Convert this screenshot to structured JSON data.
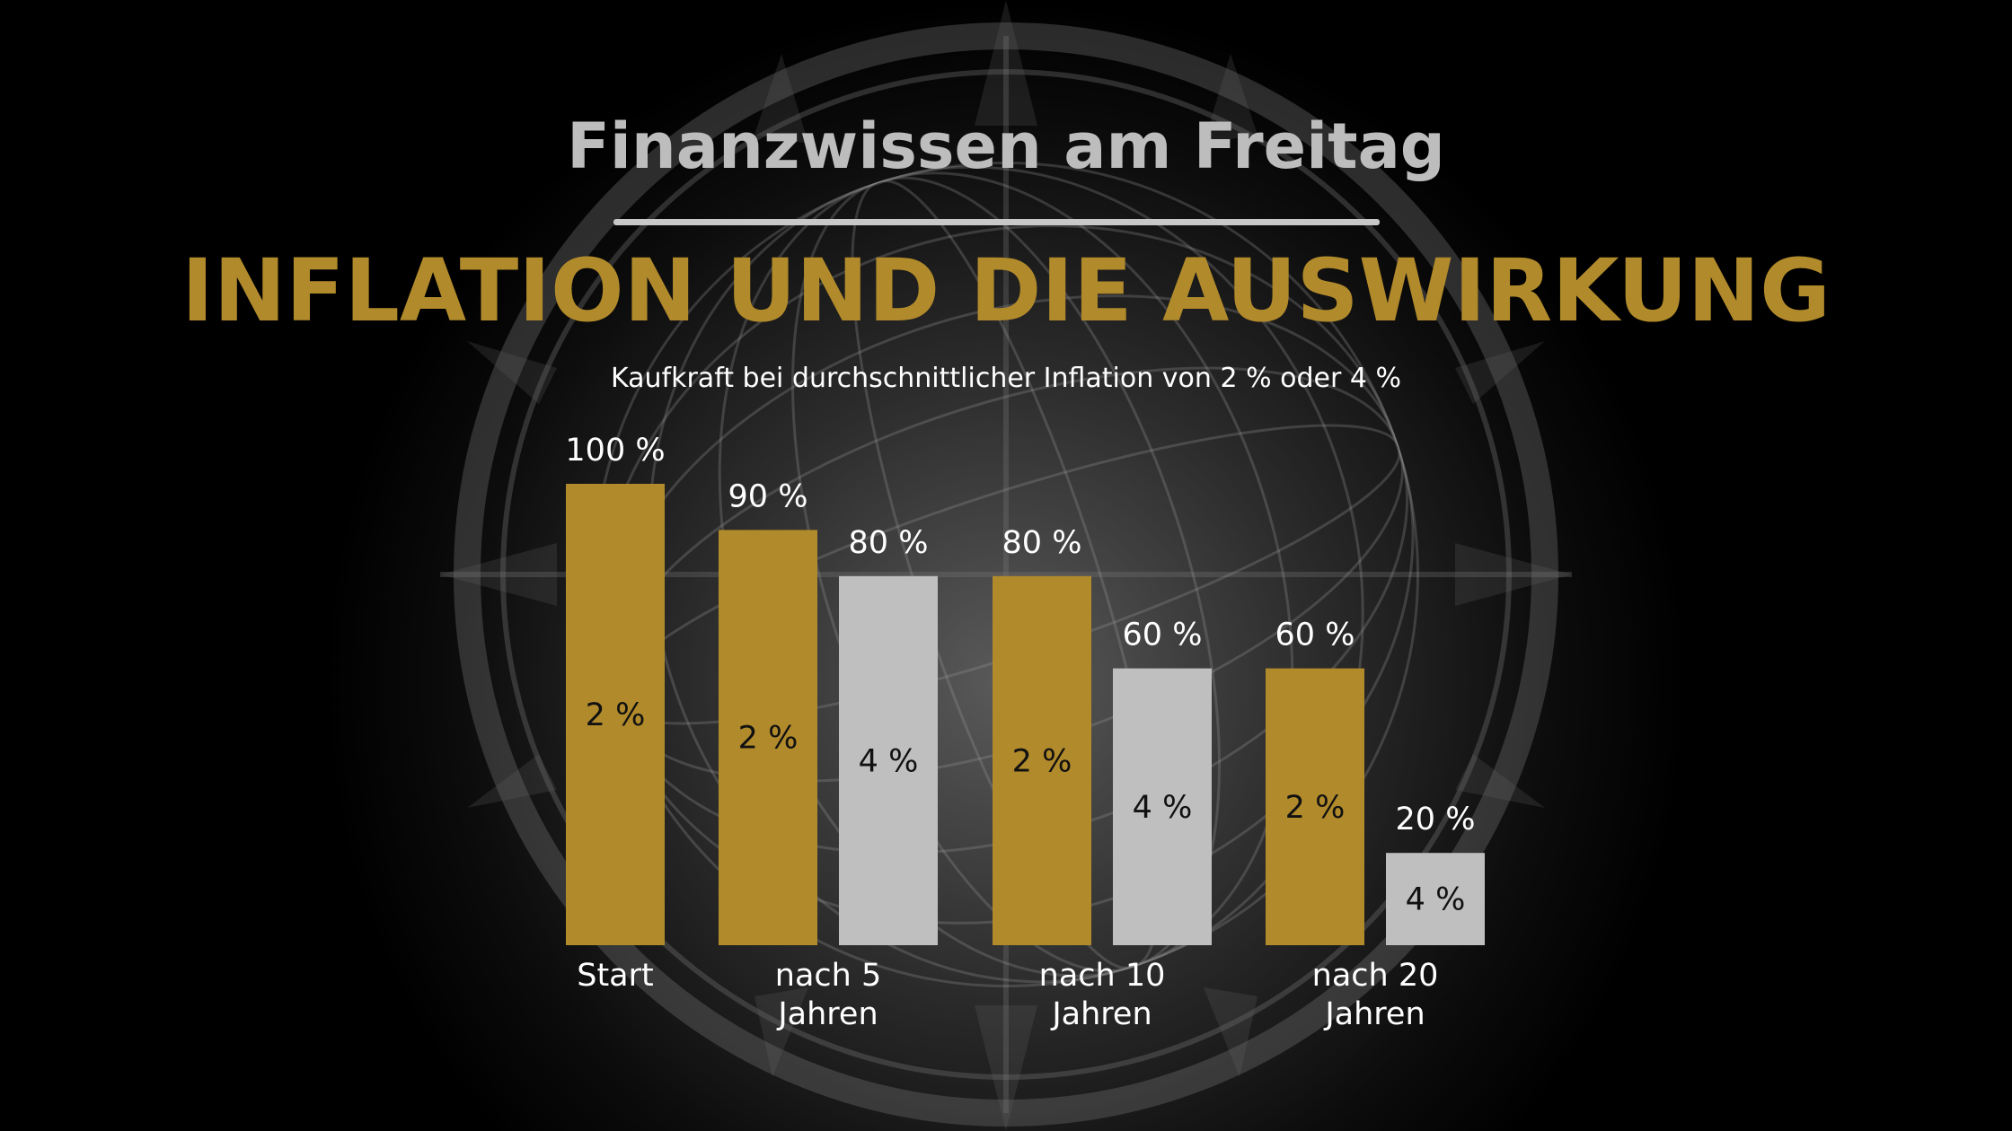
{
  "header": {
    "brand": "Finanzwissen am Freitag",
    "title": "INFLATION UND DIE AUSWIRKUNG",
    "subtitle": "Kaufkraft bei durchschnittlicher Inflation von 2 % oder 4 %"
  },
  "colors": {
    "gold": "#b18a2b",
    "silver": "#bfbfbf",
    "text_white": "#ffffff",
    "text_dark": "#111111"
  },
  "chart_data": {
    "type": "bar",
    "ylim": [
      0,
      100
    ],
    "groups": [
      {
        "label_lines": [
          "Start"
        ],
        "bars": [
          {
            "series": "2 %",
            "value": 100,
            "value_label": "100 %",
            "inner_label": "2 %"
          }
        ]
      },
      {
        "label_lines": [
          "nach 5",
          "Jahren"
        ],
        "bars": [
          {
            "series": "2 %",
            "value": 90,
            "value_label": "90 %",
            "inner_label": "2 %"
          },
          {
            "series": "4 %",
            "value": 80,
            "value_label": "80 %",
            "inner_label": "4 %"
          }
        ]
      },
      {
        "label_lines": [
          "nach 10",
          "Jahren"
        ],
        "bars": [
          {
            "series": "2 %",
            "value": 80,
            "value_label": "80 %",
            "inner_label": "2 %"
          },
          {
            "series": "4 %",
            "value": 60,
            "value_label": "60 %",
            "inner_label": "4 %"
          }
        ]
      },
      {
        "label_lines": [
          "nach 20",
          "Jahren"
        ],
        "bars": [
          {
            "series": "2 %",
            "value": 60,
            "value_label": "60 %",
            "inner_label": "2 %"
          },
          {
            "series": "4 %",
            "value": 20,
            "value_label": "20 %",
            "inner_label": "4 %"
          }
        ]
      }
    ]
  }
}
